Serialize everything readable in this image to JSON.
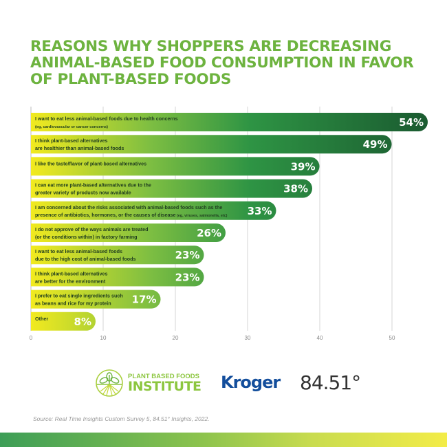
{
  "title": "REASONS WHY SHOPPERS ARE DECREASING ANIMAL-BASED FOOD CONSUMPTION IN FAVOR OF PLANT-BASED FOODS",
  "chart_data": {
    "type": "bar",
    "orientation": "horizontal",
    "title": "REASONS WHY SHOPPERS ARE DECREASING ANIMAL-BASED FOOD CONSUMPTION IN FAVOR OF PLANT-BASED FOODS",
    "xlabel": "",
    "ylabel": "",
    "xlim": [
      0,
      55
    ],
    "xticks": [
      0,
      10,
      20,
      30,
      40,
      50
    ],
    "grid": true,
    "categories": [
      {
        "line1": "I want to eat less animal-based foods due to health concerns",
        "line2": "(eg, cardiovascular or cancer concerns)",
        "small2": true
      },
      {
        "line1": "I think plant-based alternatives",
        "line2": "are healthier than animal-based foods"
      },
      {
        "line1": "I like the taste/flavor of plant-based alternatives",
        "line2": ""
      },
      {
        "line1": "I can eat more plant-based alternatives due to the",
        "line2": "greater variety of products now available"
      },
      {
        "line1": "I am concerned about the risks associated with animal-based foods such as the",
        "line2": "presence of  antibiotics, hormones, or the causes of disease",
        "line2_small": " (eg, viruses, salmonella, etc)"
      },
      {
        "line1": "I do not approve of the ways animals are treated",
        "line2": "(or the conditions within) in factory farming"
      },
      {
        "line1": "I want to eat less animal-based foods",
        "line2": "due to the high cost of animal-based foods"
      },
      {
        "line1": "I think plant-based alternatives",
        "line2": "are better for the environment"
      },
      {
        "line1": "I prefer to eat single ingredients such",
        "line2": "as beans and rice for my protein"
      },
      {
        "line1": "Other",
        "line2": ""
      }
    ],
    "values": [
      54,
      49,
      39,
      38,
      33,
      26,
      23,
      23,
      17,
      8
    ],
    "value_labels": [
      "54%",
      "49%",
      "39%",
      "38%",
      "33%",
      "26%",
      "23%",
      "23%",
      "17%",
      "8%"
    ],
    "colors": {
      "start": "#f2ea1f",
      "mid": "#7dbe42",
      "end": "#1a6b37",
      "grid": "#d6d6d6",
      "label": "#1f3d1f",
      "tick": "#888888"
    }
  },
  "logos": {
    "pbfi_line1": "PLANT BASED FOODS",
    "pbfi_line2": "INSTITUTE",
    "kroger": "Kroger",
    "f8451": "84.51°"
  },
  "source": "Source: Real Time Insights Custom Survey 5, 84.51° Insights, 2022."
}
